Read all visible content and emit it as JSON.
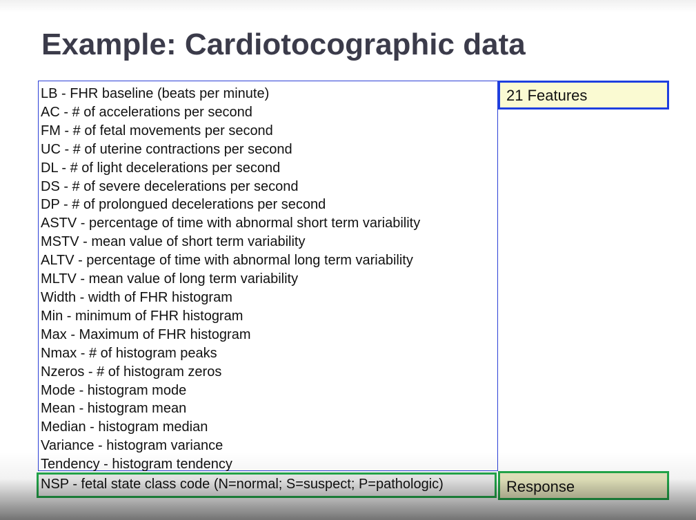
{
  "slide": {
    "title": "Example: Cardiotocographic data",
    "features": [
      "LB - FHR baseline (beats per minute)",
      "AC - # of accelerations per second",
      "FM - # of fetal movements per second",
      "UC - # of uterine contractions per second",
      "DL - # of light decelerations per second",
      "DS - # of severe decelerations per second",
      "DP - # of prolongued decelerations per second",
      "ASTV - percentage of time with abnormal short term variability",
      "MSTV - mean value of short term variability",
      "ALTV - percentage of time with abnormal long term variability",
      "MLTV - mean value of long term variability",
      "Width - width of FHR histogram",
      "Min - minimum of FHR histogram",
      "Max - Maximum of FHR histogram",
      "Nmax - # of histogram peaks",
      "Nzeros - # of histogram zeros",
      "Mode - histogram mode",
      "Mean - histogram mean",
      "Median - histogram median",
      "Variance - histogram variance",
      "Tendency - histogram tendency"
    ],
    "response": "NSP - fetal state class code (N=normal; S=suspect; P=pathologic)",
    "features_label": "21 Features",
    "response_label": "Response"
  },
  "colors": {
    "title": "#3b3b4a",
    "features_border": "#1d3fe0",
    "response_border": "#22a84a",
    "label_fill": "#fafad2"
  }
}
